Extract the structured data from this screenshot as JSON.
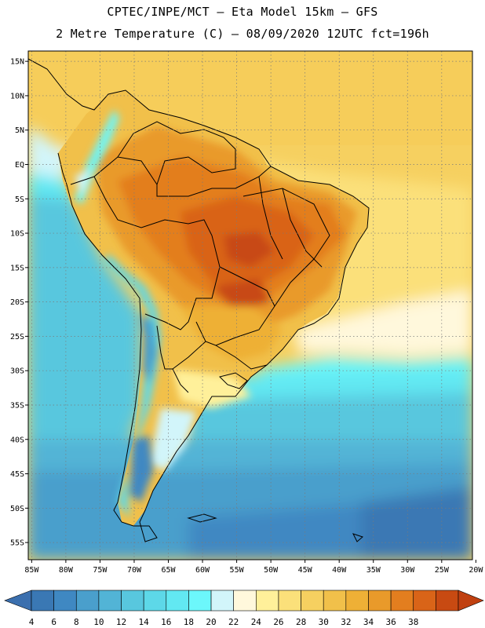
{
  "title": {
    "line1": "CPTEC/INPE/MCT –  Eta Model 15km – GFS",
    "line2": "2 Metre Temperature (C) – 08/09/2020 12UTC fct=196h"
  },
  "map": {
    "lat_labels": [
      "15N",
      "10N",
      "5N",
      "EQ",
      "5S",
      "10S",
      "15S",
      "20S",
      "25S",
      "30S",
      "35S",
      "40S",
      "45S",
      "50S",
      "55S"
    ],
    "lon_labels": [
      "85W",
      "80W",
      "75W",
      "70W",
      "65W",
      "60W",
      "55W",
      "50W",
      "45W",
      "40W",
      "35W",
      "30W",
      "25W",
      "20W"
    ],
    "lat_range": [
      -57.5,
      16.5
    ],
    "lon_range": [
      -85.5,
      -20.5
    ]
  },
  "colorbar": {
    "labels": [
      "4",
      "6",
      "8",
      "10",
      "12",
      "14",
      "16",
      "18",
      "20",
      "22",
      "24",
      "26",
      "28",
      "30",
      "32",
      "34",
      "36",
      "38"
    ],
    "colors": [
      "#3a78b4",
      "#3f88c2",
      "#4a9fcc",
      "#52b4d6",
      "#58c7de",
      "#5dd8e8",
      "#62e8f2",
      "#6cf7fb",
      "#d2f5fa",
      "#fff8dc",
      "#fff09a",
      "#fbe07a",
      "#f6d060",
      "#f1c04a",
      "#eeb036",
      "#e99a2a",
      "#e37e1f",
      "#d96418",
      "#c84a12"
    ],
    "under_color": "#3b6fae",
    "over_color": "#c04010"
  }
}
